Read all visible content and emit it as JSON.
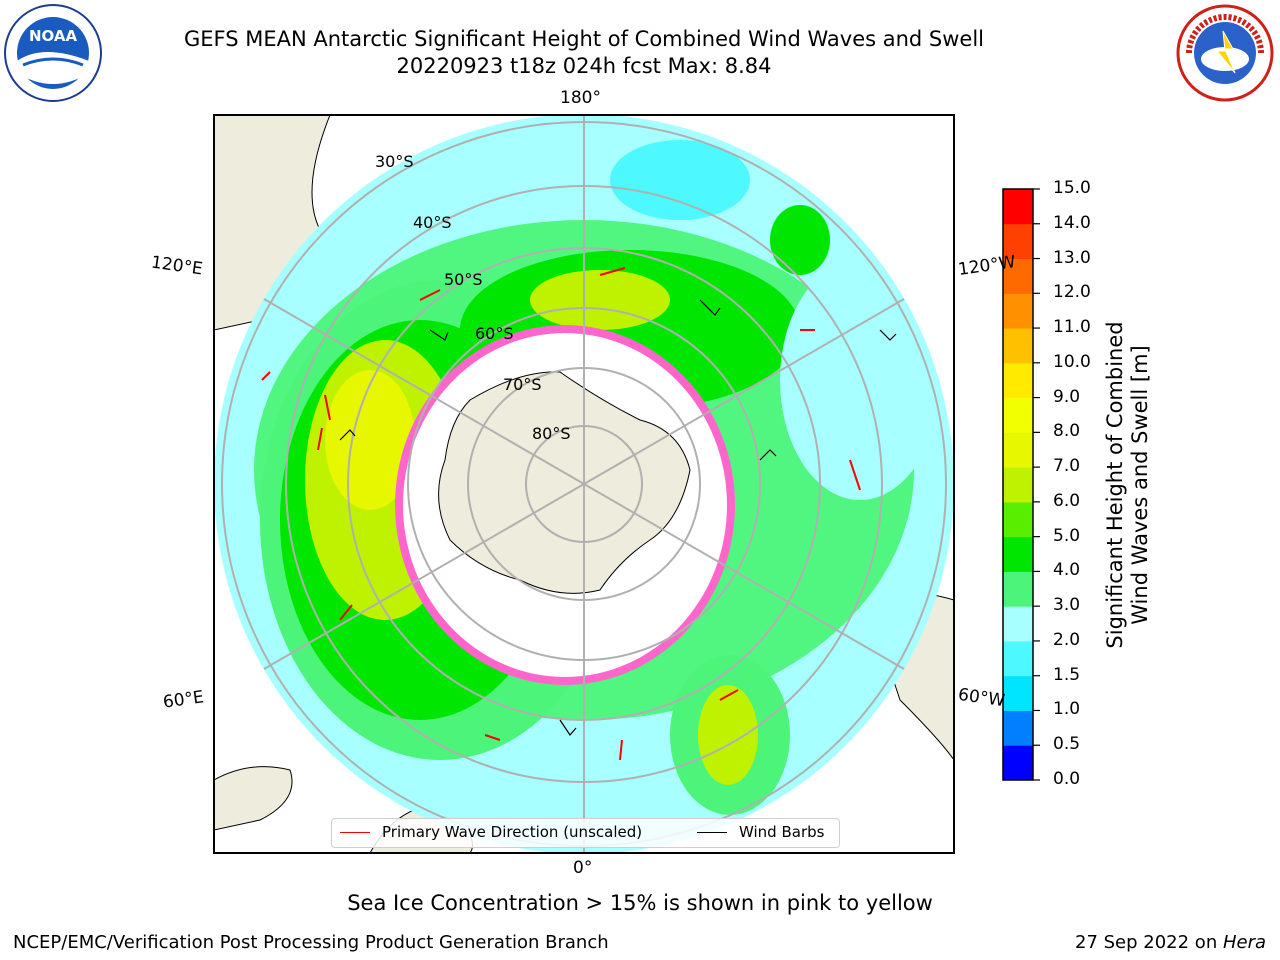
{
  "title": {
    "line1": "GEFS MEAN Antarctic Significant Height of Combined Wind Waves and Swell",
    "line2": "20220923 t18z 024h fcst   Max: 8.84"
  },
  "logos": {
    "left_name": "noaa-logo",
    "left_text": "NOAA",
    "right_name": "nws-logo",
    "right_text": "NATIONAL WEATHER SERVICE"
  },
  "map": {
    "projection": "south-polar-stereographic",
    "longitude_labels": {
      "top": "180°",
      "bottom": "0°",
      "upper_left": "120°E",
      "lower_left": "60°E",
      "upper_right": "120°W",
      "lower_right": "60°W"
    },
    "latitude_labels": [
      "30°S",
      "40°S",
      "50°S",
      "60°S",
      "70°S",
      "80°S"
    ]
  },
  "colorbar": {
    "label_line1": "Significant Height of Combined",
    "label_line2": "Wind Waves and Swell [m]",
    "ticks": [
      "0.0",
      "0.5",
      "1.0",
      "1.5",
      "2.0",
      "3.0",
      "4.0",
      "5.0",
      "6.0",
      "7.0",
      "8.0",
      "9.0",
      "10.0",
      "11.0",
      "12.0",
      "13.0",
      "14.0",
      "15.0"
    ],
    "colors": [
      "#0000ff",
      "#0080ff",
      "#00e5ff",
      "#4df8ff",
      "#a8ffff",
      "#4cf57a",
      "#00e600",
      "#59ee00",
      "#bff200",
      "#e6f700",
      "#f2ff00",
      "#ffea00",
      "#ffc000",
      "#ff9000",
      "#ff6a00",
      "#ff4000",
      "#ff0000"
    ]
  },
  "legend": {
    "items": [
      {
        "label": "Primary Wave Direction (unscaled)",
        "color": "#ff0000"
      },
      {
        "label": "Wind Barbs",
        "color": "#000000"
      }
    ]
  },
  "note": "Sea Ice Concentration > 15% is shown in pink to yellow",
  "footer": {
    "left": "NCEP/EMC/Verification Post Processing Product Generation Branch",
    "right_date": "27 Sep 2022 on ",
    "right_host": "Hera"
  }
}
